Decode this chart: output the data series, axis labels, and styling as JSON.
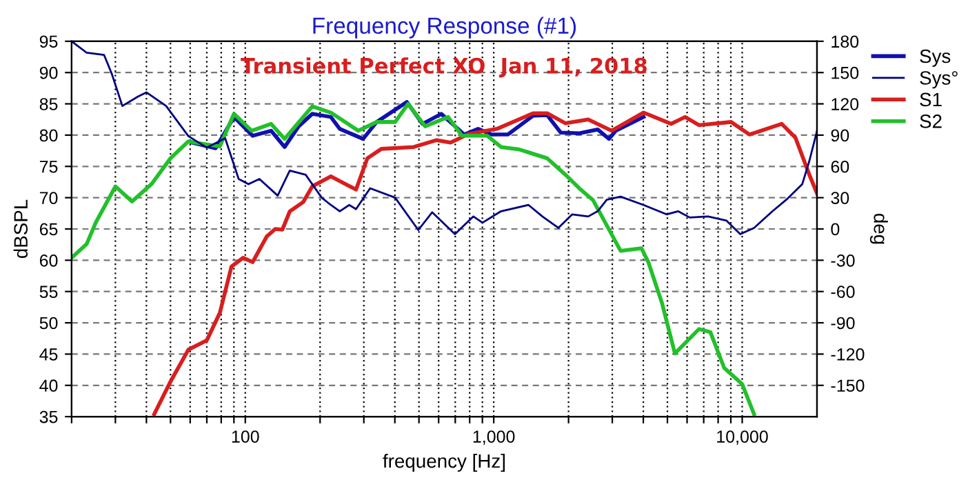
{
  "chart_data": {
    "type": "line",
    "title": "Frequency Response (#1)",
    "xlabel": "frequency [Hz]",
    "ylabel": "dBSPL",
    "y2label": "deg",
    "annotations": [
      "Transient Perfect XO  Jan 11, 2018"
    ],
    "log": "x",
    "grid": true,
    "legend": "right",
    "xlim": [
      20,
      20000
    ],
    "xticks": [
      {
        "value": 20,
        "label": null
      },
      {
        "value": 30,
        "label": null
      },
      {
        "value": 40,
        "label": null
      },
      {
        "value": 50,
        "label": null
      },
      {
        "value": 60,
        "label": null
      },
      {
        "value": 70,
        "label": null
      },
      {
        "value": 80,
        "label": null
      },
      {
        "value": 90,
        "label": null
      },
      100,
      {
        "value": 200,
        "label": null
      },
      {
        "value": 300,
        "label": null
      },
      {
        "value": 400,
        "label": null
      },
      {
        "value": 500,
        "label": null
      },
      {
        "value": 600,
        "label": null
      },
      {
        "value": 700,
        "label": null
      },
      {
        "value": 800,
        "label": null
      },
      {
        "value": 900,
        "label": null
      },
      {
        "value": 1000,
        "label": "1,000"
      },
      {
        "value": 2000,
        "label": null
      },
      {
        "value": 3000,
        "label": null
      },
      {
        "value": 4000,
        "label": null
      },
      {
        "value": 5000,
        "label": null
      },
      {
        "value": 6000,
        "label": null
      },
      {
        "value": 7000,
        "label": null
      },
      {
        "value": 8000,
        "label": null
      },
      {
        "value": 9000,
        "label": null
      },
      {
        "value": 10000,
        "label": "10,000"
      }
    ],
    "ylim": [
      35,
      95
    ],
    "yticks": [
      35,
      40,
      45,
      50,
      55,
      60,
      65,
      70,
      75,
      80,
      85,
      90,
      95
    ],
    "y2lim": [
      -180,
      180
    ],
    "y2ticks": [
      -150,
      -120,
      -90,
      -60,
      -30,
      0,
      30,
      60,
      90,
      120,
      150,
      180
    ],
    "series": [
      {
        "name": "Sys",
        "color": "#1010b0",
        "x": [
          61,
          76,
          90,
          107,
          127,
          144,
          164,
          186,
          221,
          240,
          298,
          338,
          447,
          517,
          615,
          760,
          865,
          982,
          1140,
          1440,
          1640,
          1860,
          2210,
          2620,
          2910,
          3100,
          4010
        ],
        "values": [
          78.8,
          77.9,
          82.9,
          79.9,
          80.7,
          78.1,
          81.4,
          83.4,
          82.9,
          81.0,
          79.4,
          82.1,
          85.3,
          81.8,
          83.4,
          80.1,
          81.0,
          80.1,
          80.1,
          83.1,
          83.2,
          80.4,
          80.3,
          80.9,
          79.4,
          80.7,
          82.9
        ]
      },
      {
        "name": "Sys°",
        "color": "#000080",
        "axis": "y2",
        "x": [
          20,
          23,
          27,
          29,
          32,
          37,
          40,
          48,
          59,
          70,
          83,
          94,
          103,
          114,
          135,
          151,
          175,
          203,
          221,
          240,
          262,
          279,
          318,
          401,
          497,
          565,
          698,
          828,
          901,
          1070,
          1380,
          1570,
          1820,
          2070,
          2400,
          2620,
          2850,
          3240,
          4010,
          4960,
          5520,
          6150,
          7290,
          8650,
          9820,
          11160,
          13240,
          15040,
          17450,
          18620,
          20000
        ],
        "values": [
          180,
          169,
          167,
          149,
          118,
          127,
          131,
          118,
          89,
          78,
          87,
          48,
          43,
          48,
          32,
          56,
          52,
          30,
          23,
          17,
          23,
          19,
          39,
          30,
          -1,
          16,
          -5,
          12,
          6,
          17,
          23,
          12,
          1,
          14,
          12,
          17,
          28,
          31,
          23,
          14,
          17,
          11,
          12,
          8,
          -5,
          1,
          17,
          28,
          43,
          65,
          94
        ]
      },
      {
        "name": "S1",
        "color": "#d81e1e",
        "x": [
          43,
          50,
          59,
          70,
          79,
          88,
          98,
          107,
          122,
          132,
          141,
          151,
          171,
          186,
          221,
          279,
          310,
          353,
          476,
          589,
          670,
          794,
          1030,
          1440,
          1640,
          1940,
          2400,
          2980,
          4010,
          5180,
          5890,
          6700,
          9020,
          10690,
          14420,
          16370,
          18620,
          20000
        ],
        "values": [
          35.4,
          40.6,
          45.7,
          47.2,
          51.6,
          59.0,
          60.4,
          59.7,
          63.8,
          65.0,
          64.9,
          67.8,
          69.3,
          71.8,
          73.4,
          71.3,
          76.3,
          77.8,
          78.1,
          79.2,
          78.8,
          80.2,
          81.0,
          83.5,
          83.5,
          81.9,
          82.5,
          80.7,
          83.6,
          81.8,
          82.9,
          81.6,
          82.1,
          80.1,
          81.8,
          79.6,
          73.7,
          70.7
        ]
      },
      {
        "name": "S2",
        "color": "#22c02a",
        "x": [
          20,
          23,
          25,
          30,
          35,
          42,
          50,
          59,
          70,
          79,
          90,
          106,
          127,
          144,
          186,
          221,
          285,
          338,
          401,
          452,
          530,
          655,
          745,
          942,
          1070,
          1270,
          1640,
          1940,
          2210,
          2510,
          3240,
          3930,
          4190,
          4760,
          5360,
          6700,
          7450,
          8460,
          10000,
          11160
        ],
        "values": [
          60.4,
          62.6,
          66.0,
          71.8,
          69.4,
          72.2,
          76.3,
          79.0,
          78.5,
          78.2,
          83.4,
          80.7,
          81.8,
          79.4,
          84.6,
          83.6,
          80.7,
          82.1,
          82.1,
          85.0,
          81.4,
          82.9,
          79.9,
          79.9,
          78.1,
          77.7,
          76.3,
          73.7,
          71.5,
          69.6,
          61.5,
          61.9,
          59.7,
          53.1,
          45.1,
          49.0,
          48.5,
          42.8,
          40.2,
          35.4
        ]
      }
    ]
  }
}
